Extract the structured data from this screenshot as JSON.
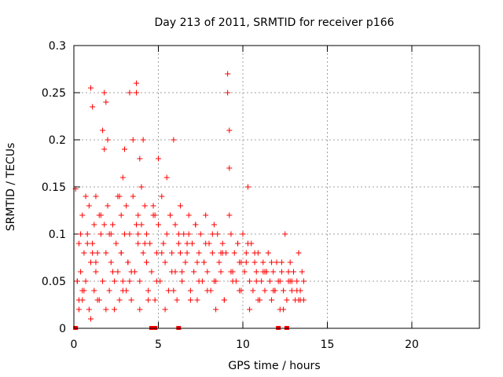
{
  "chart_data": {
    "type": "scatter",
    "title": "Day 213 of 2011, SRMTID for receiver p166",
    "xlabel": "GPS time / hours",
    "ylabel": "SRMTID / TECUs",
    "xlim": [
      0,
      24
    ],
    "ylim": [
      0,
      0.3
    ],
    "xticks": [
      0,
      5,
      10,
      15,
      20
    ],
    "yticks": [
      0,
      0.05,
      0.1,
      0.15,
      0.2,
      0.25,
      0.3
    ],
    "xtick_labels": [
      "0",
      "5",
      "10",
      "15",
      "20"
    ],
    "ytick_labels": [
      "0",
      "0.05",
      "0.1",
      "0.15",
      "0.2",
      "0.25",
      "0.3"
    ],
    "grid": true,
    "legend": "none",
    "marker": "+",
    "color": "#ff0000",
    "series": [
      {
        "x": [
          0.1,
          0.2,
          0.3,
          0.3,
          0.4,
          0.4,
          0.5,
          0.5,
          0.6,
          0.7,
          0.7,
          0.8,
          0.9,
          0.9,
          1.0,
          1.0,
          1.1,
          1.1,
          1.2,
          1.2,
          1.3,
          1.3,
          1.4,
          1.5,
          1.5,
          1.6,
          1.7,
          1.7,
          1.8,
          1.8,
          1.9,
          1.9,
          2.0,
          2.0,
          2.1,
          2.1,
          2.2,
          2.3,
          2.4,
          2.5,
          2.6,
          2.6,
          2.7,
          2.8,
          2.8,
          2.9,
          2.9,
          3.0,
          3.0,
          3.1,
          3.1,
          3.2,
          3.3,
          3.3,
          3.4,
          3.5,
          3.5,
          3.6,
          3.7,
          3.7,
          3.8,
          3.8,
          3.9,
          3.9,
          4.0,
          4.0,
          4.1,
          4.1,
          4.2,
          4.3,
          4.3,
          4.4,
          4.5,
          4.6,
          4.7,
          4.8,
          4.9,
          5.0,
          5.0,
          5.1,
          5.2,
          5.3,
          5.4,
          5.5,
          5.5,
          5.6,
          5.7,
          5.8,
          5.9,
          6.0,
          6.0,
          6.1,
          6.2,
          6.3,
          6.4,
          6.5,
          6.6,
          6.7,
          6.8,
          6.9,
          7.0,
          7.1,
          7.2,
          7.3,
          7.4,
          7.5,
          7.6,
          7.7,
          7.8,
          7.9,
          8.0,
          8.1,
          8.2,
          8.3,
          8.4,
          8.5,
          8.6,
          8.7,
          8.8,
          8.9,
          9.0,
          9.1,
          9.1,
          9.2,
          9.2,
          9.3,
          9.4,
          9.5,
          9.6,
          9.7,
          9.8,
          9.9,
          10.0,
          10.1,
          10.2,
          10.3,
          10.4,
          10.5,
          10.6,
          10.7,
          10.8,
          10.9,
          11.0,
          11.1,
          11.2,
          11.3,
          11.4,
          11.5,
          11.6,
          11.7,
          11.8,
          11.9,
          12.0,
          12.1,
          12.2,
          12.3,
          12.4,
          12.5,
          12.6,
          12.7,
          12.8,
          12.9,
          13.0,
          13.1,
          13.2,
          13.3,
          13.4,
          13.5,
          13.6,
          0.2,
          0.6,
          1.0,
          1.4,
          1.9,
          2.4,
          2.9,
          3.4,
          3.9,
          4.4,
          4.9,
          5.4,
          5.9,
          6.4,
          6.9,
          7.4,
          7.9,
          8.4,
          8.9,
          9.4,
          9.9,
          10.4,
          10.9,
          11.4,
          11.9,
          12.4,
          12.9,
          13.4,
          0.3,
          0.8,
          1.3,
          1.8,
          2.3,
          2.8,
          3.3,
          3.8,
          4.3,
          4.8,
          5.3,
          5.8,
          6.3,
          6.8,
          7.3,
          7.8,
          8.3,
          8.8,
          9.3,
          9.8,
          10.3,
          10.8,
          11.3,
          11.8,
          12.3,
          12.8,
          13.3,
          0.5,
          1.1,
          1.6,
          2.2,
          2.7,
          3.2,
          3.7,
          4.2,
          4.7,
          5.2,
          5.7,
          6.2,
          6.7,
          7.2,
          7.7,
          8.2,
          8.7,
          9.2,
          9.7,
          10.2,
          10.7,
          11.2,
          11.7,
          12.2,
          12.7,
          13.2,
          13.6
        ],
        "y": [
          0.148,
          0.05,
          0.09,
          0.02,
          0.1,
          0.06,
          0.12,
          0.03,
          0.08,
          0.14,
          0.05,
          0.1,
          0.02,
          0.13,
          0.07,
          0.255,
          0.235,
          0.09,
          0.11,
          0.04,
          0.14,
          0.06,
          0.08,
          0.12,
          0.03,
          0.1,
          0.21,
          0.05,
          0.19,
          0.25,
          0.24,
          0.08,
          0.2,
          0.13,
          0.1,
          0.04,
          0.07,
          0.11,
          0.02,
          0.09,
          0.06,
          0.14,
          0.03,
          0.12,
          0.08,
          0.16,
          0.05,
          0.1,
          0.19,
          0.04,
          0.13,
          0.07,
          0.25,
          0.1,
          0.03,
          0.14,
          0.2,
          0.06,
          0.26,
          0.25,
          0.12,
          0.09,
          0.18,
          0.05,
          0.15,
          0.11,
          0.08,
          0.2,
          0.13,
          0.07,
          0.1,
          0.04,
          0.09,
          0.06,
          0.12,
          0.03,
          0.08,
          0.18,
          0.11,
          0.05,
          0.14,
          0.09,
          0.07,
          0.1,
          0.16,
          0.04,
          0.12,
          0.08,
          0.2,
          0.06,
          0.11,
          0.03,
          0.09,
          0.13,
          0.05,
          0.1,
          0.07,
          0.08,
          0.12,
          0.04,
          0.09,
          0.06,
          0.11,
          0.03,
          0.08,
          0.1,
          0.05,
          0.07,
          0.12,
          0.06,
          0.09,
          0.04,
          0.08,
          0.11,
          0.05,
          0.1,
          0.07,
          0.06,
          0.09,
          0.03,
          0.08,
          0.27,
          0.25,
          0.21,
          0.17,
          0.1,
          0.06,
          0.08,
          0.05,
          0.09,
          0.04,
          0.07,
          0.1,
          0.06,
          0.08,
          0.15,
          0.05,
          0.09,
          0.04,
          0.07,
          0.06,
          0.08,
          0.03,
          0.05,
          0.07,
          0.04,
          0.06,
          0.08,
          0.05,
          0.03,
          0.06,
          0.04,
          0.07,
          0.05,
          0.02,
          0.06,
          0.04,
          0.1,
          0.03,
          0.05,
          0.07,
          0.04,
          0.06,
          0.03,
          0.05,
          0.08,
          0.04,
          0.06,
          0.03,
          0.05,
          0.04,
          0.01,
          0.03,
          0.02,
          0.05,
          0.04,
          0.06,
          0.02,
          0.03,
          0.05,
          0.02,
          0.04,
          0.06,
          0.03,
          0.05,
          0.04,
          0.02,
          0.03,
          0.05,
          0.04,
          0.02,
          0.03,
          0.06,
          0.04,
          0.02,
          0.05,
          0.03,
          0.03,
          0.09,
          0.07,
          0.11,
          0.06,
          0.08,
          0.05,
          0.1,
          0.07,
          0.12,
          0.09,
          0.06,
          0.08,
          0.1,
          0.07,
          0.09,
          0.05,
          0.08,
          0.06,
          0.07,
          0.09,
          0.05,
          0.06,
          0.04,
          0.07,
          0.05,
          0.03,
          0.04,
          0.08,
          0.12,
          0.1,
          0.14,
          0.07,
          0.11,
          0.09,
          0.13,
          0.08,
          0.12,
          0.1,
          0.09,
          0.11,
          0.07,
          0.1,
          0.08,
          0.12,
          0.09,
          0.07,
          0.08,
          0.06,
          0.07,
          0.05,
          0.06,
          0.04,
          0.05
        ],
        "bottom_markers_x": [
          0.1,
          4.6,
          4.8,
          6.2,
          12.1,
          12.6
        ]
      }
    ]
  }
}
